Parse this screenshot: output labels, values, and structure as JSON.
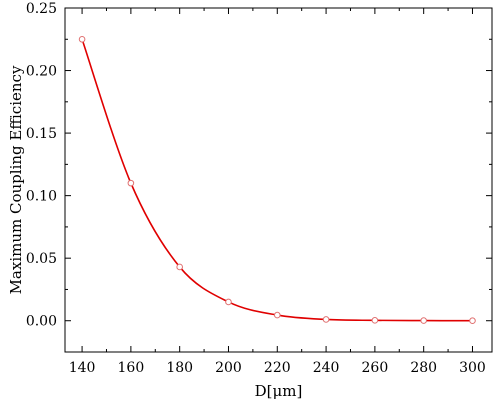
{
  "chart_data": {
    "type": "line",
    "xlabel": "D[μm]",
    "ylabel": "Maximum Coupling Efficiency",
    "xlim": [
      133,
      308
    ],
    "ylim": [
      -0.025,
      0.25
    ],
    "x_ticks": [
      140,
      160,
      180,
      200,
      220,
      240,
      260,
      280,
      300
    ],
    "x_tick_labels": [
      "140",
      "160",
      "180",
      "200",
      "220",
      "240",
      "260",
      "280",
      "300"
    ],
    "y_ticks": [
      0.0,
      0.05,
      0.1,
      0.15,
      0.2,
      0.25
    ],
    "y_tick_labels": [
      "0.00",
      "0.05",
      "0.10",
      "0.15",
      "0.20",
      "0.25"
    ],
    "grid": false,
    "legend": "none",
    "series": [
      {
        "x": [
          140,
          160,
          180,
          200,
          220,
          240,
          260,
          280,
          300
        ],
        "y": [
          0.225,
          0.11,
          0.043,
          0.015,
          0.0045,
          0.001,
          0.0003,
          0.0001,
          0.0
        ]
      }
    ],
    "colors": {
      "line": "#e00000",
      "marker_edge": "#e07070",
      "marker_fill": "#ffffff",
      "axis": "#000000"
    }
  }
}
